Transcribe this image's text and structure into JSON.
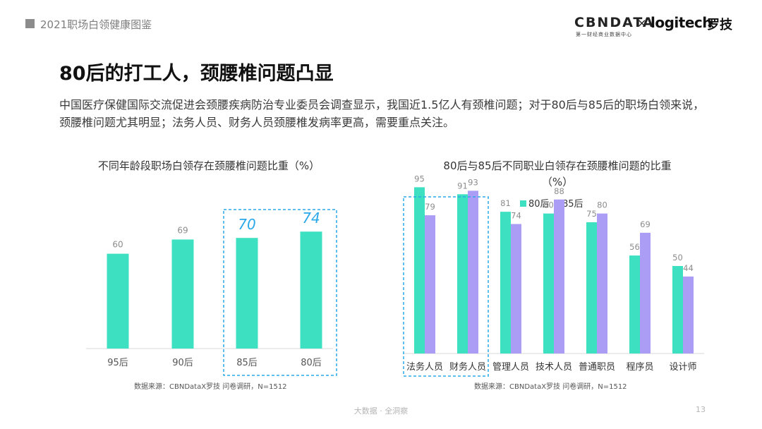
{
  "header": {
    "report_title": "2021职场白领健康图鉴",
    "brand_cbn": "CBNDATA",
    "brand_cbn_sub": "第一财经商业数据中心",
    "brand_x": "×",
    "brand_logitech": "logitech",
    "brand_logitech_cn": "罗技"
  },
  "title": "80后的打工人，颈腰椎问题凸显",
  "intro": "中国医疗保健国际交流促进会颈腰疾病防治专业委员会调查显示，我国近1.5亿人有颈椎问题；对于80后与85后的职场白领来说，颈腰椎问题尤其明显；法务人员、财务人员颈腰椎发病率更高，需要重点关注。",
  "footer": {
    "text": "大数据 · 全洞察",
    "page": "13"
  },
  "colors": {
    "teal": "#3ee0c2",
    "purple": "#ab9cf6",
    "highlight": "#2aa8e8",
    "axis": "#d9d9d9",
    "label": "#8c8c8c"
  },
  "chart_data": [
    {
      "type": "bar",
      "title": "不同年龄段职场白领存在颈腰椎问题比重（%）",
      "categories": [
        "95后",
        "90后",
        "85后",
        "80后"
      ],
      "values": [
        60,
        69,
        70,
        74
      ],
      "highlighted": [
        "85后",
        "80后"
      ],
      "ylim": [
        0,
        100
      ],
      "source": "数据来源：CBNDataX罗技 问卷调研，N=1512"
    },
    {
      "type": "bar",
      "title_line1": "80后与85后不同职业白领存在颈腰椎问题的比重",
      "title_line2": "（%）",
      "categories": [
        "法务人员",
        "财务人员",
        "管理人员",
        "技术人员",
        "普通职员",
        "程序员",
        "设计师"
      ],
      "series": [
        {
          "name": "80后",
          "values": [
            95,
            91,
            81,
            80,
            75,
            56,
            50
          ]
        },
        {
          "name": "85后",
          "values": [
            79,
            93,
            74,
            88,
            80,
            69,
            44
          ]
        }
      ],
      "highlighted": [
        "法务人员",
        "财务人员"
      ],
      "ylim": [
        0,
        100
      ],
      "source": "数据来源：CBNDataX罗技 问卷调研，N=1512"
    }
  ]
}
